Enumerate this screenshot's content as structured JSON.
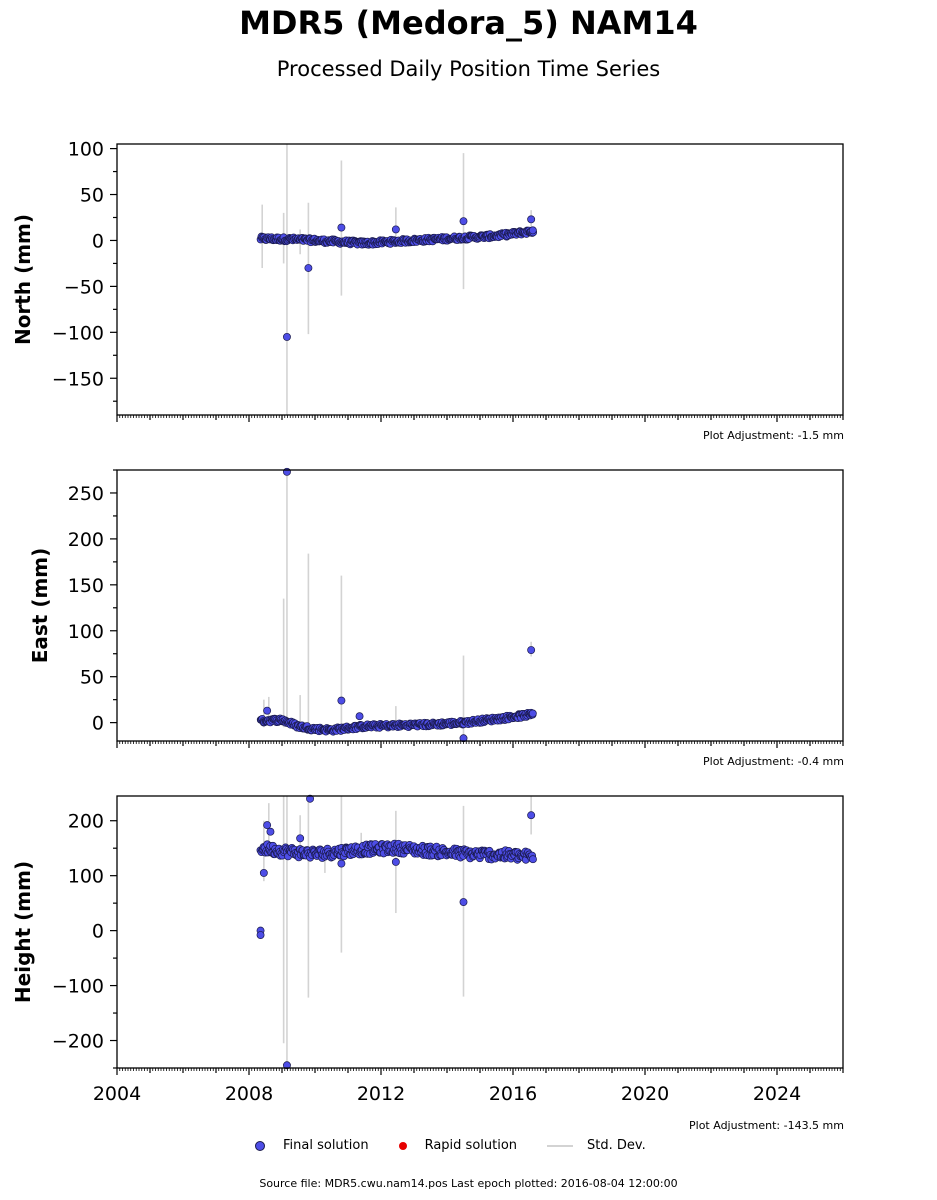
{
  "header": {
    "title": "MDR5 (Medora_5) NAM14",
    "subtitle": "Processed Daily Position Time Series"
  },
  "panels": [
    {
      "ylabel": "North (mm)",
      "adjustment": "Plot Adjustment: -1.5 mm"
    },
    {
      "ylabel": "East (mm)",
      "adjustment": "Plot Adjustment: -0.4 mm"
    },
    {
      "ylabel": "Height (mm)",
      "adjustment": "Plot Adjustment: -143.5 mm"
    }
  ],
  "legend": {
    "final": "Final solution",
    "rapid": "Rapid solution",
    "std": "Std. Dev."
  },
  "footer": "Source file: MDR5.cwu.nam14.pos  Last epoch plotted: 2016-08-04 12:00:00",
  "colors": {
    "final": "#4d4de6",
    "rapid": "#e60000",
    "std": "#d3d3d3",
    "edge": "#1a1a4d"
  },
  "chart_data": [
    {
      "type": "scatter",
      "ylabel": "North (mm)",
      "xlim": [
        2004,
        2026
      ],
      "ylim": [
        -190,
        105
      ],
      "xticks": [
        2004,
        2008,
        2012,
        2016,
        2020,
        2024
      ],
      "yticks": [
        -150,
        -100,
        -50,
        0,
        50,
        100
      ],
      "trend": [
        [
          2008.4,
          2
        ],
        [
          2009.5,
          1
        ],
        [
          2010.5,
          -1
        ],
        [
          2011.5,
          -3
        ],
        [
          2012.5,
          -1
        ],
        [
          2013.5,
          1
        ],
        [
          2014.5,
          3
        ],
        [
          2015.5,
          5
        ],
        [
          2016.6,
          10
        ]
      ],
      "outliers": [
        [
          2009.15,
          -105
        ],
        [
          2009.8,
          -30
        ],
        [
          2010.8,
          14
        ],
        [
          2012.45,
          12
        ],
        [
          2014.5,
          21
        ],
        [
          2016.55,
          23
        ],
        [
          2016.6,
          11
        ]
      ],
      "errorbars": [
        [
          2008.4,
          -30,
          39
        ],
        [
          2009.05,
          -25,
          30
        ],
        [
          2009.15,
          -190,
          105
        ],
        [
          2009.55,
          -15,
          12
        ],
        [
          2009.8,
          -102,
          41
        ],
        [
          2010.8,
          -60,
          87
        ],
        [
          2012.45,
          -5,
          36
        ],
        [
          2014.5,
          -53,
          95
        ],
        [
          2016.55,
          15,
          33
        ]
      ]
    },
    {
      "type": "scatter",
      "ylabel": "East (mm)",
      "xlim": [
        2004,
        2026
      ],
      "ylim": [
        -20,
        275
      ],
      "xticks": [
        2004,
        2008,
        2012,
        2016,
        2020,
        2024
      ],
      "yticks": [
        0,
        50,
        100,
        150,
        200,
        250
      ],
      "trend": [
        [
          2008.4,
          2
        ],
        [
          2009.0,
          3
        ],
        [
          2009.5,
          -4
        ],
        [
          2010.0,
          -7
        ],
        [
          2010.5,
          -8
        ],
        [
          2011.5,
          -4
        ],
        [
          2012.5,
          -3
        ],
        [
          2013.5,
          -2
        ],
        [
          2014.5,
          0
        ],
        [
          2015.5,
          4
        ],
        [
          2016.6,
          9
        ]
      ],
      "outliers": [
        [
          2008.55,
          13
        ],
        [
          2009.15,
          273
        ],
        [
          2010.8,
          24
        ],
        [
          2011.35,
          7
        ],
        [
          2014.5,
          -17
        ],
        [
          2016.55,
          79
        ],
        [
          2016.6,
          10
        ]
      ],
      "errorbars": [
        [
          2008.45,
          -5,
          25
        ],
        [
          2008.6,
          0,
          28
        ],
        [
          2009.05,
          -5,
          135
        ],
        [
          2009.15,
          0,
          275
        ],
        [
          2009.55,
          -5,
          30
        ],
        [
          2009.8,
          -10,
          184
        ],
        [
          2010.8,
          -10,
          160
        ],
        [
          2012.45,
          -5,
          18
        ],
        [
          2014.5,
          -20,
          73
        ],
        [
          2016.55,
          72,
          88
        ]
      ]
    },
    {
      "type": "scatter",
      "ylabel": "Height (mm)",
      "xlim": [
        2004,
        2026
      ],
      "ylim": [
        -250,
        245
      ],
      "xticks": [
        2004,
        2008,
        2012,
        2016,
        2020,
        2024
      ],
      "yticks": [
        -200,
        -100,
        0,
        100,
        200
      ],
      "trend": [
        [
          2008.4,
          150
        ],
        [
          2009.0,
          145
        ],
        [
          2009.5,
          142
        ],
        [
          2010.0,
          140
        ],
        [
          2010.5,
          142
        ],
        [
          2011.5,
          148
        ],
        [
          2012.5,
          150
        ],
        [
          2013.5,
          145
        ],
        [
          2014.5,
          140
        ],
        [
          2015.5,
          138
        ],
        [
          2016.6,
          135
        ]
      ],
      "outliers": [
        [
          2008.35,
          0
        ],
        [
          2008.35,
          -8
        ],
        [
          2008.45,
          105
        ],
        [
          2008.55,
          192
        ],
        [
          2008.65,
          180
        ],
        [
          2009.15,
          -245
        ],
        [
          2009.55,
          168
        ],
        [
          2009.85,
          240
        ],
        [
          2010.8,
          122
        ],
        [
          2012.45,
          125
        ],
        [
          2014.5,
          52
        ],
        [
          2016.55,
          210
        ]
      ],
      "errorbars": [
        [
          2008.45,
          90,
          200
        ],
        [
          2008.6,
          140,
          232
        ],
        [
          2009.05,
          -205,
          245
        ],
        [
          2009.15,
          -245,
          245
        ],
        [
          2009.55,
          140,
          210
        ],
        [
          2009.8,
          -122,
          245
        ],
        [
          2010.3,
          105,
          150
        ],
        [
          2010.8,
          -40,
          245
        ],
        [
          2011.4,
          130,
          178
        ],
        [
          2012.45,
          32,
          218
        ],
        [
          2014.5,
          -120,
          227
        ],
        [
          2016.55,
          175,
          245
        ]
      ]
    }
  ]
}
